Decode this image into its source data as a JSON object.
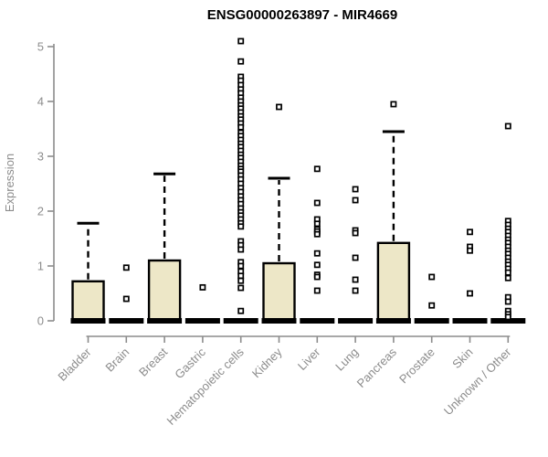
{
  "chart_data": {
    "type": "boxplot",
    "title": "ENSG00000263897 - MIR4669",
    "ylabel": "Expression",
    "xlabel": "",
    "ylim": [
      0,
      5
    ],
    "yticks": [
      0,
      1,
      2,
      3,
      4,
      5
    ],
    "grid": false,
    "legend": "none",
    "colors": {
      "box_fill": "#EDE7C7",
      "box_stroke": "#000000",
      "axis": "#8C8C8C",
      "tick_label": "#8C8C8C",
      "title": "#000000"
    },
    "categories": [
      "Bladder",
      "Brain",
      "Breast",
      "Gastric",
      "Hematopoietic cells",
      "Kidney",
      "Liver",
      "Lung",
      "Pancreas",
      "Prostate",
      "Skin",
      "Unknown / Other"
    ],
    "boxes": [
      {
        "label": "Bladder",
        "whisker_low": 0,
        "q1": 0,
        "median": 0,
        "q3": 0.72,
        "whisker_high": 1.78,
        "outliers": []
      },
      {
        "label": "Brain",
        "whisker_low": 0,
        "q1": 0,
        "median": 0,
        "q3": 0,
        "whisker_high": 0,
        "outliers": [
          0.97,
          0.4
        ]
      },
      {
        "label": "Breast",
        "whisker_low": 0,
        "q1": 0,
        "median": 0,
        "q3": 1.1,
        "whisker_high": 2.68,
        "outliers": []
      },
      {
        "label": "Gastric",
        "whisker_low": 0,
        "q1": 0,
        "median": 0,
        "q3": 0,
        "whisker_high": 0,
        "outliers": [
          0.61
        ]
      },
      {
        "label": "Hematopoietic cells",
        "whisker_low": 0,
        "q1": 0,
        "median": 0,
        "q3": 0,
        "whisker_high": 0,
        "outliers": [
          5.1,
          4.73,
          4.45,
          4.38,
          4.3,
          4.22,
          4.15,
          4.07,
          4.0,
          3.93,
          3.87,
          3.8,
          3.73,
          3.67,
          3.6,
          3.53,
          3.43,
          3.37,
          3.3,
          3.23,
          3.17,
          3.1,
          3.03,
          2.97,
          2.9,
          2.83,
          2.77,
          2.72,
          2.65,
          2.58,
          2.5,
          2.42,
          2.35,
          2.27,
          2.2,
          2.13,
          2.05,
          1.98,
          1.92,
          1.85,
          1.78,
          1.72,
          1.45,
          1.38,
          1.3,
          1.07,
          1.0,
          0.9,
          0.82,
          0.73,
          0.6,
          0.18
        ]
      },
      {
        "label": "Kidney",
        "whisker_low": 0,
        "q1": 0,
        "median": 0,
        "q3": 1.05,
        "whisker_high": 2.6,
        "outliers": [
          3.9
        ]
      },
      {
        "label": "Liver",
        "whisker_low": 0,
        "q1": 0,
        "median": 0,
        "q3": 0,
        "whisker_high": 0,
        "outliers": [
          2.77,
          2.15,
          1.85,
          1.77,
          1.67,
          1.63,
          1.58,
          1.23,
          1.02,
          0.84,
          0.8,
          0.55
        ]
      },
      {
        "label": "Lung",
        "whisker_low": 0,
        "q1": 0,
        "median": 0,
        "q3": 0,
        "whisker_high": 0,
        "outliers": [
          2.4,
          2.2,
          1.65,
          1.6,
          1.15,
          0.75,
          0.55
        ]
      },
      {
        "label": "Pancreas",
        "whisker_low": 0,
        "q1": 0,
        "median": 0,
        "q3": 1.42,
        "whisker_high": 3.45,
        "outliers": [
          3.95
        ]
      },
      {
        "label": "Prostate",
        "whisker_low": 0,
        "q1": 0,
        "median": 0,
        "q3": 0,
        "whisker_high": 0,
        "outliers": [
          0.8,
          0.28
        ]
      },
      {
        "label": "Skin",
        "whisker_low": 0,
        "q1": 0,
        "median": 0,
        "q3": 0,
        "whisker_high": 0,
        "outliers": [
          1.62,
          1.35,
          1.28,
          0.5
        ]
      },
      {
        "label": "Unknown / Other",
        "whisker_low": 0,
        "q1": 0,
        "median": 0,
        "q3": 0,
        "whisker_high": 0,
        "outliers": [
          3.55,
          1.82,
          1.75,
          1.68,
          1.62,
          1.55,
          1.48,
          1.42,
          1.35,
          1.28,
          1.22,
          1.15,
          1.08,
          1.02,
          0.95,
          0.88,
          0.78,
          0.43,
          0.35,
          0.18,
          0.12,
          0.07
        ]
      }
    ]
  }
}
